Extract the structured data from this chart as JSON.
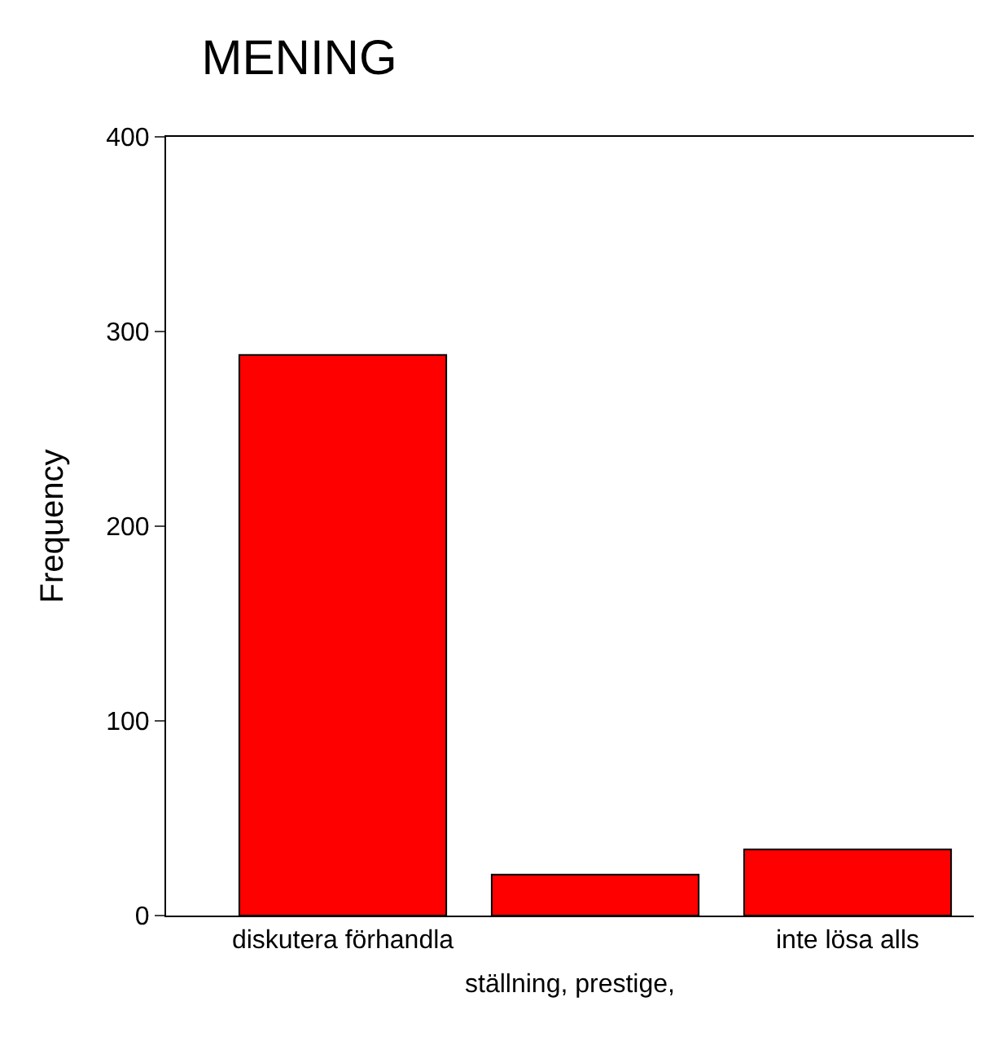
{
  "chart_data": {
    "type": "bar",
    "title": "MENING",
    "xlabel": "ställning, prestige,",
    "ylabel": "Frequency",
    "categories": [
      "diskutera förhandla",
      null,
      "inte lösa alls"
    ],
    "values": [
      288,
      21,
      34
    ],
    "color": "#ff0000",
    "ylim": [
      0,
      400
    ],
    "yticks": [
      0,
      100,
      200,
      300,
      400
    ],
    "grid": false,
    "legend": false
  }
}
